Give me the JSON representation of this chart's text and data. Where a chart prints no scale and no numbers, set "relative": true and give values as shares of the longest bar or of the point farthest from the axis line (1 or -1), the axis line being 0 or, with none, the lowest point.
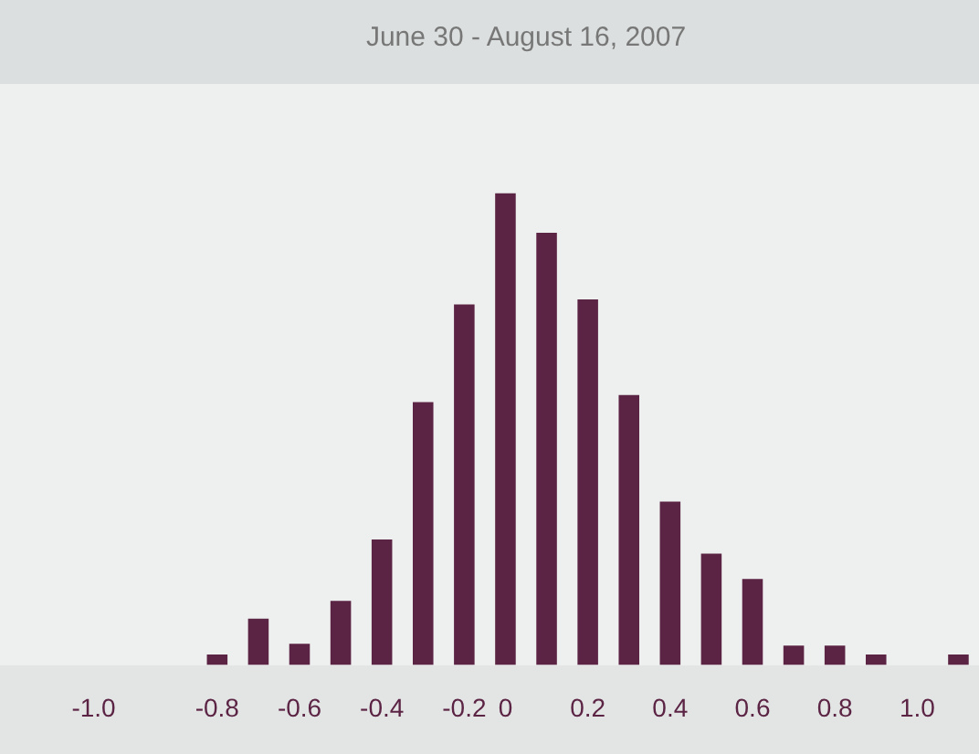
{
  "chart_data": {
    "type": "bar",
    "title": "June 30 - August 16, 2007",
    "relative": true,
    "color": "#5c2444",
    "categories": [
      "-1.0",
      null,
      null,
      "-0.8",
      null,
      "-0.6",
      null,
      "-0.4",
      null,
      "-0.2",
      "0",
      null,
      "0.2",
      null,
      "0.4",
      null,
      "0.6",
      null,
      "0.8",
      null,
      "1.0",
      null
    ],
    "values": [
      null,
      null,
      null,
      0.022,
      0.098,
      0.045,
      0.136,
      0.266,
      0.557,
      0.764,
      1,
      0.916,
      0.775,
      0.572,
      0.346,
      0.236,
      0.182,
      0.041,
      0.041,
      0.022,
      null,
      0.022
    ]
  }
}
